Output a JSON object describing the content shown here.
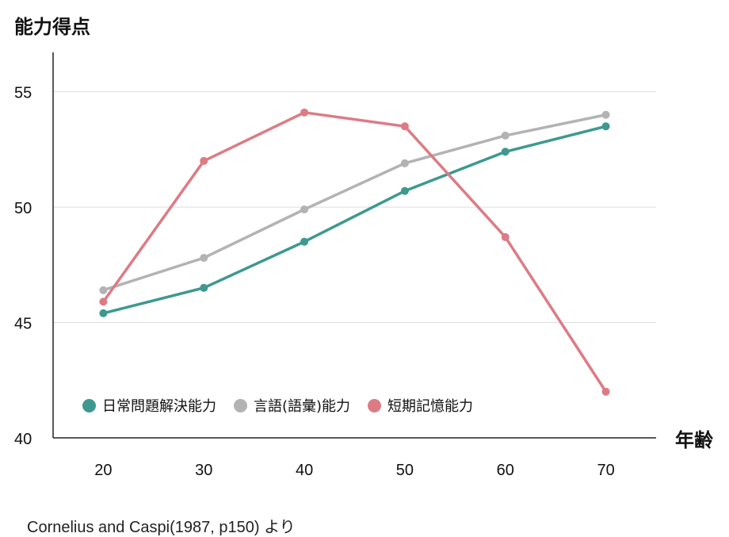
{
  "chart_data": {
    "type": "line",
    "ylabel": "能力得点",
    "xlabel": "年齢",
    "x": [
      20,
      30,
      40,
      50,
      60,
      70
    ],
    "x_tick_labels": [
      "20",
      "30",
      "40",
      "50",
      "60",
      "70"
    ],
    "y_tick_labels": [
      "40",
      "45",
      "50",
      "55"
    ],
    "y_ticks": [
      40,
      45,
      50,
      55
    ],
    "ylim": [
      40,
      56.5
    ],
    "xlim": [
      15,
      75
    ],
    "grid": true,
    "legend_position": "bottom-left",
    "series": [
      {
        "name": "日常問題解決能力",
        "color": "#3d9990",
        "values": [
          45.4,
          46.5,
          48.5,
          50.7,
          52.4,
          53.5
        ]
      },
      {
        "name": "言語(語彙)能力",
        "color": "#b3b3b3",
        "values": [
          46.4,
          47.8,
          49.9,
          51.9,
          53.1,
          54.0
        ]
      },
      {
        "name": "短期記憶能力",
        "color": "#dd7b84",
        "values": [
          45.9,
          52.0,
          54.1,
          53.5,
          48.7,
          42.0
        ]
      }
    ]
  },
  "source": "Cornelius and Caspi(1987, p150) より"
}
